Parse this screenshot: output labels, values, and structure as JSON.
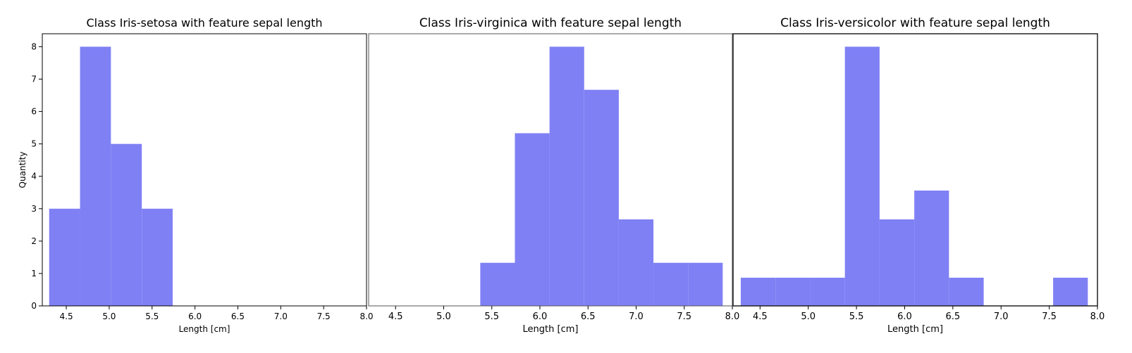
{
  "chart_data": [
    {
      "type": "bar",
      "title": "Class Iris-setosa with feature sepal length",
      "xlabel": "Length [cm]",
      "ylabel": "Quantity",
      "xlim": [
        4.22,
        8.0
      ],
      "ylim": [
        0,
        8.4
      ],
      "xticks": [
        "4.5",
        "5.0",
        "5.5",
        "6.0",
        "6.5",
        "7.0",
        "7.5",
        "8.0"
      ],
      "yticks": [
        "0",
        "1",
        "2",
        "3",
        "4",
        "5",
        "6",
        "7",
        "8"
      ],
      "bin_edges": [
        4.3,
        4.66,
        5.02,
        5.38,
        5.74,
        6.1,
        6.46,
        6.82,
        7.18,
        7.54,
        7.9
      ],
      "values": [
        3,
        8,
        5,
        3,
        0,
        0,
        0,
        0,
        0,
        0
      ],
      "color": "#8080f5"
    },
    {
      "type": "bar",
      "title": "Class Iris-virginica with feature sepal length",
      "xlabel": "Length [cm]",
      "ylabel": "",
      "xlim": [
        4.22,
        8.0
      ],
      "ylim": [
        0,
        8.4
      ],
      "xticks": [
        "4.5",
        "5.0",
        "5.5",
        "6.0",
        "6.5",
        "7.0",
        "7.5",
        "8.0"
      ],
      "bin_edges": [
        4.3,
        4.66,
        5.02,
        5.38,
        5.74,
        6.1,
        6.46,
        6.82,
        7.18,
        7.54,
        7.9
      ],
      "values": [
        0,
        0,
        0,
        1.33,
        5.33,
        8,
        6.67,
        2.67,
        1.33,
        1.33
      ],
      "color": "#8080f5"
    },
    {
      "type": "bar",
      "title": "Class Iris-versicolor with feature sepal length",
      "xlabel": "Length [cm]",
      "ylabel": "",
      "xlim": [
        4.22,
        8.0
      ],
      "ylim": [
        0,
        8.4
      ],
      "xticks": [
        "4.5",
        "5.0",
        "5.5",
        "6.0",
        "6.5",
        "7.0",
        "7.5",
        "8.0"
      ],
      "bin_edges": [
        4.3,
        4.66,
        5.02,
        5.38,
        5.74,
        6.1,
        6.46,
        6.82,
        7.18,
        7.54,
        7.9
      ],
      "values": [
        0.87,
        0.87,
        0.87,
        8,
        2.67,
        3.56,
        0.87,
        0,
        0,
        0.87
      ],
      "color": "#8080f5"
    }
  ]
}
